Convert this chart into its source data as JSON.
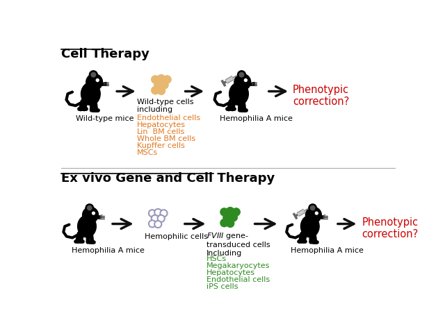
{
  "background_color": "#ffffff",
  "top_title": "Cell Therapy",
  "bottom_title": "Ex vivo Gene and Cell Therapy",
  "orange_color": "#E07820",
  "green_color": "#2E8B22",
  "red_color": "#CC0000",
  "black_color": "#000000",
  "arrow_color": "#111111",
  "cell_color_top": "#E8B870",
  "cell_color_bottom_empty": "#9999bb",
  "cell_color_bottom_full": "#2E8B22",
  "top_orange_items": [
    "Endothelial cells",
    "Hepatocytes",
    "Lin⁻ BM cells",
    "Whole BM cells",
    "Kupffer cells",
    "MSCs"
  ],
  "bottom_green_items": [
    "HSCs",
    "Megakaryocytes",
    "Hepatocytes",
    "Endothelial cells",
    "iPS cells"
  ]
}
